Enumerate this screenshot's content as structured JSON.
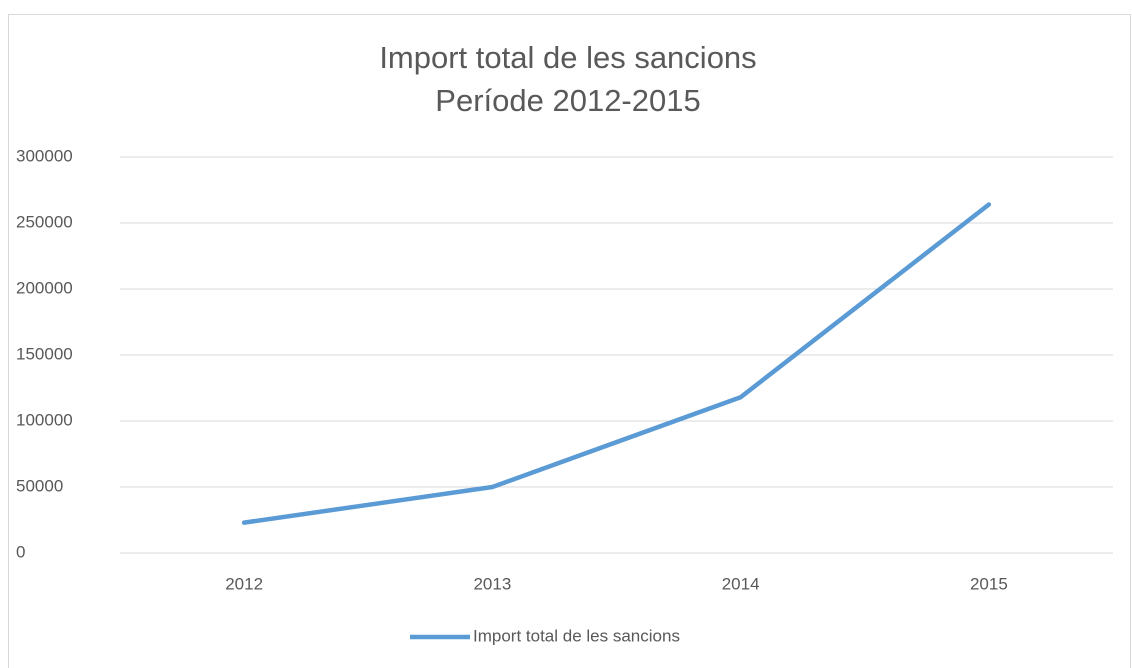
{
  "chart_data": {
    "type": "line",
    "title": "Import total de les sancions",
    "subtitle": "Període 2012-2015",
    "categories": [
      "2012",
      "2013",
      "2014",
      "2015"
    ],
    "series": [
      {
        "name": "Import total de les sancions",
        "color": "#5b9bd5",
        "values": [
          23000,
          50000,
          118000,
          264000
        ]
      }
    ],
    "ylim": [
      0,
      300000
    ],
    "yticks": [
      0,
      50000,
      100000,
      150000,
      200000,
      250000,
      300000
    ],
    "grid": true,
    "legend": "bottom"
  }
}
